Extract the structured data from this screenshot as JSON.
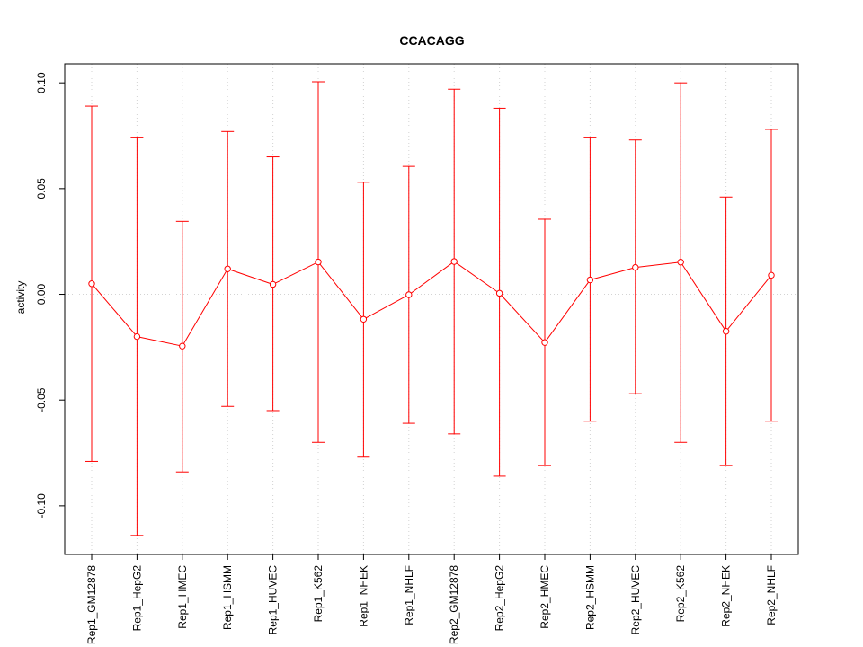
{
  "chart_data": {
    "type": "line",
    "title": "CCACAGG",
    "xlabel": "",
    "ylabel": "activity",
    "ylim": [
      -0.123,
      0.109
    ],
    "grid": true,
    "categories": [
      "Rep1_GM12878",
      "Rep1_HepG2",
      "Rep1_HMEC",
      "Rep1_HSMM",
      "Rep1_HUVEC",
      "Rep1_K562",
      "Rep1_NHEK",
      "Rep1_NHLF",
      "Rep2_GM12878",
      "Rep2_HepG2",
      "Rep2_HMEC",
      "Rep2_HSMM",
      "Rep2_HUVEC",
      "Rep2_K562",
      "Rep2_NHEK",
      "Rep2_NHLF"
    ],
    "y_ticks": [
      -0.1,
      -0.05,
      0.0,
      0.05,
      0.1
    ],
    "y_tick_labels": [
      "-0.10",
      "-0.05",
      "0.00",
      "0.05",
      "0.10"
    ],
    "series": [
      {
        "name": "activity",
        "color": "#ff0000",
        "values": [
          0.005,
          -0.02,
          -0.0245,
          0.012,
          0.0047,
          0.0153,
          -0.0118,
          -0.0002,
          0.0155,
          0.0005,
          -0.0228,
          0.0068,
          0.0127,
          0.0152,
          -0.0175,
          0.009
        ],
        "upper": [
          0.089,
          0.074,
          0.0345,
          0.077,
          0.065,
          0.1005,
          0.053,
          0.0605,
          0.097,
          0.088,
          0.0355,
          0.074,
          0.073,
          0.1,
          0.046,
          0.078
        ],
        "lower": [
          -0.079,
          -0.114,
          -0.084,
          -0.053,
          -0.055,
          -0.07,
          -0.077,
          -0.061,
          -0.066,
          -0.086,
          -0.081,
          -0.06,
          -0.047,
          -0.07,
          -0.081,
          -0.06
        ]
      }
    ]
  }
}
